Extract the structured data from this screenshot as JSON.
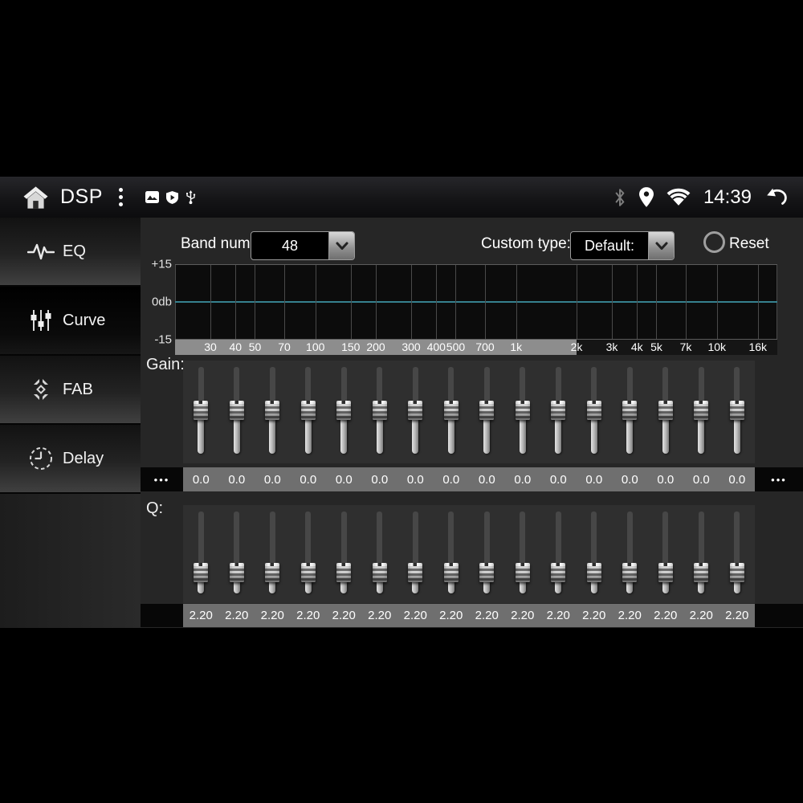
{
  "status_bar": {
    "title": "DSP",
    "time": "14:39",
    "icons": [
      "home-icon",
      "menu-dots-icon",
      "gallery-icon",
      "shield-icon",
      "usb-icon",
      "bluetooth-icon",
      "location-icon",
      "wifi-icon",
      "back-icon"
    ]
  },
  "sidebar": {
    "items": [
      {
        "id": "eq",
        "label": "EQ",
        "icon": "waveform-icon",
        "active": false
      },
      {
        "id": "curve",
        "label": "Curve",
        "icon": "sliders-icon",
        "active": true
      },
      {
        "id": "fab",
        "label": "FAB",
        "icon": "fab-arrows-icon",
        "active": false
      },
      {
        "id": "delay",
        "label": "Delay",
        "icon": "clock-icon",
        "active": false
      }
    ]
  },
  "controls": {
    "band_num_label": "Band num:",
    "band_num_value": "48",
    "custom_type_label": "Custom type:",
    "custom_type_value": "Default:",
    "reset_label": "Reset"
  },
  "chart_data": {
    "type": "line",
    "title": "EQ frequency response curve",
    "x_scale": "log",
    "x_range_hz": [
      20,
      20000
    ],
    "ylim": [
      -15,
      15
    ],
    "y_labels": [
      "+15",
      "0db",
      "-15"
    ],
    "freq_ticks": [
      {
        "hz": 30,
        "label": "30"
      },
      {
        "hz": 40,
        "label": "40"
      },
      {
        "hz": 50,
        "label": "50"
      },
      {
        "hz": 70,
        "label": "70"
      },
      {
        "hz": 100,
        "label": "100"
      },
      {
        "hz": 150,
        "label": "150"
      },
      {
        "hz": 200,
        "label": "200"
      },
      {
        "hz": 300,
        "label": "300"
      },
      {
        "hz": 400,
        "label": "400"
      },
      {
        "hz": 500,
        "label": "500"
      },
      {
        "hz": 700,
        "label": "700"
      },
      {
        "hz": 1000,
        "label": "1k"
      },
      {
        "hz": 2000,
        "label": "2k"
      },
      {
        "hz": 3000,
        "label": "3k"
      },
      {
        "hz": 4000,
        "label": "4k"
      },
      {
        "hz": 5000,
        "label": "5k"
      },
      {
        "hz": 7000,
        "label": "7k"
      },
      {
        "hz": 10000,
        "label": "10k"
      },
      {
        "hz": 16000,
        "label": "16k"
      }
    ],
    "curve_db": 0,
    "zero_line_color": "#36818f",
    "axis_highlight_to_hz": 2000,
    "grid": true
  },
  "gain": {
    "label": "Gain:",
    "range": [
      -15,
      15
    ],
    "values": [
      0,
      0,
      0,
      0,
      0,
      0,
      0,
      0,
      0,
      0,
      0,
      0,
      0,
      0,
      0,
      0
    ],
    "display": [
      "0.0",
      "0.0",
      "0.0",
      "0.0",
      "0.0",
      "0.0",
      "0.0",
      "0.0",
      "0.0",
      "0.0",
      "0.0",
      "0.0",
      "0.0",
      "0.0",
      "0.0",
      "0.0"
    ],
    "more_left": "•••",
    "more_right": "•••"
  },
  "q": {
    "label": "Q:",
    "range": [
      0.5,
      10
    ],
    "values": [
      2.2,
      2.2,
      2.2,
      2.2,
      2.2,
      2.2,
      2.2,
      2.2,
      2.2,
      2.2,
      2.2,
      2.2,
      2.2,
      2.2,
      2.2,
      2.2
    ],
    "display": [
      "2.20",
      "2.20",
      "2.20",
      "2.20",
      "2.20",
      "2.20",
      "2.20",
      "2.20",
      "2.20",
      "2.20",
      "2.20",
      "2.20",
      "2.20",
      "2.20",
      "2.20",
      "2.20"
    ]
  }
}
